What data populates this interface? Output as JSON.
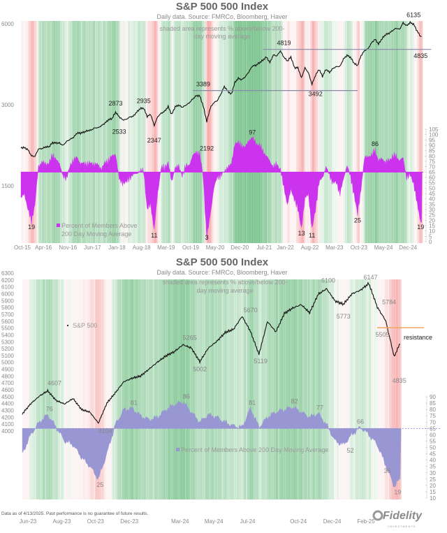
{
  "colors": {
    "green": "#3aa655",
    "red": "#f08a8a",
    "index_line": "#111111",
    "breadth_top": "#cc33ee",
    "breadth_bottom": "#9996d4",
    "resistance": "#f0a860",
    "level_line": "#8888aa"
  },
  "footnote": "Data as of 4/13/2025. Past performance is no guarantee of future results.",
  "logo": {
    "text": "Fidelity",
    "sub": "INVESTMENTS"
  },
  "chart_data": [
    {
      "type": "line",
      "title": "S&P 500 500 Index",
      "subtitle": "Daily data.  Source: FMRCo, Bloomberg, Haver",
      "note_line1": "shaded area represents % above/below 200-",
      "note_line2": "day moving average",
      "left_axis": {
        "scale": "log",
        "ticks": [
          6000,
          3000,
          1500
        ]
      },
      "right_axis": {
        "range": [
          0,
          105
        ],
        "ticks": [
          0,
          5,
          10,
          15,
          20,
          25,
          30,
          35,
          40,
          45,
          50,
          55,
          60,
          65,
          70,
          75,
          80,
          85,
          90,
          95,
          100,
          105
        ],
        "baseline": 65
      },
      "x_ticks": [
        "Oct-15",
        "Apr-16",
        "Nov-16",
        "Jun-17",
        "Jan-18",
        "Aug-18",
        "Mar-19",
        "Oct-19",
        "May-20",
        "Dec-20",
        "Jul-21",
        "Jan-22",
        "Aug-22",
        "Mar-23",
        "Oct-23",
        "May-24",
        "Dec-24"
      ],
      "x_tick_dates": [
        "2015-10",
        "2016-04",
        "2016-11",
        "2017-06",
        "2018-01",
        "2018-08",
        "2019-03",
        "2019-10",
        "2020-05",
        "2020-12",
        "2021-07",
        "2022-01",
        "2022-08",
        "2023-03",
        "2023-10",
        "2024-05",
        "2024-12"
      ],
      "legend": {
        "line1": "Percent of Members Above",
        "line2": "200 Day Moving Average"
      },
      "start": "2015-10",
      "index_monthly": [
        2079,
        2080,
        2044,
        1940,
        1932,
        2060,
        2065,
        2097,
        2099,
        2174,
        2171,
        2168,
        2126,
        2199,
        2239,
        2279,
        2364,
        2363,
        2384,
        2412,
        2423,
        2470,
        2472,
        2519,
        2575,
        2648,
        2674,
        2823,
        2714,
        2641,
        2648,
        2705,
        2718,
        2816,
        2902,
        2914,
        2711,
        2760,
        2507,
        2704,
        2784,
        2834,
        2946,
        2752,
        2942,
        2980,
        2926,
        2977,
        3038,
        3141,
        3231,
        3226,
        2954,
        2585,
        2912,
        3044,
        3100,
        3271,
        3500,
        3363,
        3270,
        3622,
        3756,
        3714,
        3811,
        3973,
        4181,
        4204,
        4298,
        4395,
        4523,
        4308,
        4605,
        4567,
        4766,
        4516,
        4374,
        4530,
        4132,
        4132,
        3785,
        4130,
        3955,
        3586,
        3872,
        4080,
        3840,
        4077,
        3970,
        4109,
        4169,
        4180,
        4450,
        4589,
        4508,
        4288,
        4194,
        4568,
        4770,
        4846,
        5096,
        5254,
        5036,
        5278,
        5460,
        5522,
        5648,
        5762,
        5705,
        6032,
        5882,
        6041,
        5955,
        5612,
        5363
      ],
      "breadth_monthly": [
        40,
        45,
        30,
        19,
        35,
        70,
        75,
        72,
        74,
        80,
        78,
        72,
        62,
        58,
        72,
        75,
        80,
        72,
        74,
        72,
        74,
        72,
        72,
        68,
        74,
        76,
        80,
        82,
        58,
        55,
        55,
        60,
        62,
        64,
        66,
        66,
        30,
        35,
        11,
        45,
        70,
        68,
        75,
        55,
        70,
        70,
        62,
        70,
        72,
        80,
        84,
        82,
        60,
        3,
        25,
        50,
        60,
        62,
        65,
        70,
        72,
        92,
        92,
        90,
        88,
        95,
        97,
        92,
        90,
        85,
        80,
        75,
        70,
        72,
        68,
        50,
        35,
        48,
        40,
        30,
        13,
        40,
        45,
        11,
        30,
        55,
        60,
        70,
        62,
        55,
        55,
        45,
        58,
        72,
        60,
        45,
        25,
        50,
        78,
        80,
        80,
        86,
        75,
        78,
        74,
        76,
        80,
        80,
        76,
        78,
        60,
        62,
        55,
        35,
        19
      ],
      "level_lines": [
        {
          "value": 4819,
          "from": "2021-07",
          "to": "2025-07"
        },
        {
          "value": 3389,
          "from": "2019-11",
          "to": "2023-10"
        }
      ],
      "index_annotations": [
        {
          "label": "2873",
          "date": "2018-01",
          "value": 2873,
          "pos": "above"
        },
        {
          "label": "2533",
          "date": "2018-02",
          "value": 2533,
          "pos": "below"
        },
        {
          "label": "2935",
          "date": "2018-09",
          "value": 2935,
          "pos": "above"
        },
        {
          "label": "2347",
          "date": "2018-12",
          "value": 2347,
          "pos": "below"
        },
        {
          "label": "3389",
          "date": "2020-02",
          "value": 3389,
          "pos": "above"
        },
        {
          "label": "2192",
          "date": "2020-03",
          "value": 2192,
          "pos": "below"
        },
        {
          "label": "4819",
          "date": "2022-01",
          "value": 4819,
          "pos": "above"
        },
        {
          "label": "3492",
          "date": "2022-10",
          "value": 3492,
          "pos": "below"
        },
        {
          "label": "6135",
          "date": "2025-02",
          "value": 6135,
          "pos": "above"
        },
        {
          "label": "4835",
          "date": "2025-04",
          "value": 4835,
          "pos": "below"
        }
      ],
      "breadth_annotations": [
        {
          "label": "19",
          "date": "2016-01",
          "value": 19
        },
        {
          "label": "11",
          "date": "2018-12",
          "value": 11
        },
        {
          "label": "3",
          "date": "2020-03",
          "value": 3
        },
        {
          "label": "97",
          "date": "2021-04",
          "value": 97,
          "pos": "above"
        },
        {
          "label": "13",
          "date": "2022-06",
          "value": 13
        },
        {
          "label": "11",
          "date": "2022-09",
          "value": 11
        },
        {
          "label": "25",
          "date": "2023-10",
          "value": 25
        },
        {
          "label": "86",
          "date": "2024-03",
          "value": 86,
          "pos": "above"
        },
        {
          "label": "19",
          "date": "2025-04",
          "value": 19
        }
      ]
    },
    {
      "type": "line",
      "title": "S&P 500 500 Index",
      "subtitle": "Daily data.  Source: FMRCo, Bloomberg, Haver",
      "note_line1": "shaded area represents % above/below 200-",
      "note_line2": "day moving average",
      "left_axis": {
        "scale": "linear",
        "range": [
          4000,
          6300
        ],
        "ticks": [
          4000,
          4100,
          4200,
          4300,
          4400,
          4500,
          4600,
          4700,
          4800,
          4900,
          5000,
          5100,
          5200,
          5300,
          5400,
          5500,
          5600,
          5700,
          5800,
          5900,
          6000,
          6100,
          6200,
          6300
        ]
      },
      "right_axis": {
        "range": [
          10,
          90
        ],
        "ticks": [
          10,
          15,
          20,
          25,
          30,
          35,
          40,
          45,
          50,
          55,
          60,
          65,
          70,
          75,
          80,
          85,
          90
        ],
        "baseline": 65
      },
      "x_ticks": [
        "Jun-23",
        "Aug-23",
        "Oct-23",
        "Dec-23",
        "Mar-24",
        "May-24",
        "Jul-24",
        "Oct-24",
        "Dec-24",
        "Feb-25"
      ],
      "x_tick_dates": [
        "2023-06",
        "2023-08",
        "2023-10",
        "2023-12",
        "2024-03",
        "2024-05",
        "2024-07",
        "2024-10",
        "2024-12",
        "2025-02"
      ],
      "legend_index": "S&P 500",
      "legend_breadth": "Percent of Members Above 200 Day Moving Average",
      "resistance": {
        "label": "resistance",
        "value": 5505
      },
      "start": "2023-06",
      "index_semimonthly": [
        4250,
        4400,
        4510,
        4590,
        4450,
        4400,
        4480,
        4320,
        4280,
        4120,
        4410,
        4560,
        4720,
        4770,
        4800,
        4900,
        5000,
        5090,
        5150,
        5250,
        5200,
        5002,
        5200,
        5300,
        5430,
        5480,
        5670,
        5450,
        5119,
        5600,
        5450,
        5720,
        5800,
        5850,
        5730,
        6000,
        6080,
        5900,
        5850,
        6000,
        6050,
        6147,
        5800,
        5600,
        5074,
        5363
      ],
      "breadth_semimonthly": [
        45,
        60,
        70,
        76,
        66,
        55,
        52,
        42,
        35,
        25,
        45,
        68,
        80,
        81,
        75,
        72,
        74,
        80,
        84,
        86,
        78,
        70,
        76,
        74,
        70,
        67,
        66,
        81,
        66,
        74,
        78,
        80,
        82,
        78,
        74,
        77,
        68,
        55,
        52,
        60,
        66,
        60,
        52,
        36,
        19,
        28
      ],
      "index_annotations": [
        {
          "label": "4607",
          "date": "2023-07.9",
          "value": 4607,
          "pos": "above"
        },
        {
          "label": "4104",
          "date": "2023-10.9",
          "value": 4104,
          "pos": "below"
        },
        {
          "label": "5265",
          "date": "2024-03.9",
          "value": 5265,
          "pos": "above"
        },
        {
          "label": "5002",
          "date": "2024-04.5",
          "value": 5002,
          "pos": "below"
        },
        {
          "label": "5670",
          "date": "2024-07.5",
          "value": 5670,
          "pos": "above"
        },
        {
          "label": "5119",
          "date": "2024-08.1",
          "value": 5119,
          "pos": "below"
        },
        {
          "label": "6100",
          "date": "2024-12.1",
          "value": 6100,
          "pos": "above"
        },
        {
          "label": "5773",
          "date": "2025-01.0",
          "value": 5773,
          "pos": "below"
        },
        {
          "label": "6147",
          "date": "2025-02.6",
          "value": 6147,
          "pos": "above"
        },
        {
          "label": "5784",
          "date": "2025-03.7",
          "value": 5784,
          "pos": "above"
        },
        {
          "label": "5505",
          "date": "2025-03.3",
          "value": 5505,
          "pos": "below"
        },
        {
          "label": "4835",
          "date": "2025-04.3",
          "value": 4835,
          "pos": "below"
        }
      ],
      "breadth_annotations": [
        {
          "label": "76",
          "date": "2023-07.6",
          "value": 76,
          "pos": "above"
        },
        {
          "label": "25",
          "date": "2023-10.6",
          "value": 25
        },
        {
          "label": "81",
          "date": "2023-12.6",
          "value": 81,
          "pos": "above"
        },
        {
          "label": "86",
          "date": "2024-03.7",
          "value": 86,
          "pos": "above"
        },
        {
          "label": "81",
          "date": "2024-07.6",
          "value": 81,
          "pos": "above"
        },
        {
          "label": "82",
          "date": "2024-10.1",
          "value": 82,
          "pos": "above"
        },
        {
          "label": "77",
          "date": "2024-11.6",
          "value": 77,
          "pos": "above"
        },
        {
          "label": "66",
          "date": "2025-02.0",
          "value": 66,
          "pos": "above"
        },
        {
          "label": "52",
          "date": "2025-01.4",
          "value": 52
        },
        {
          "label": "36",
          "date": "2025-03.6",
          "value": 36
        },
        {
          "label": "19",
          "date": "2025-04.2",
          "value": 19
        }
      ]
    }
  ]
}
